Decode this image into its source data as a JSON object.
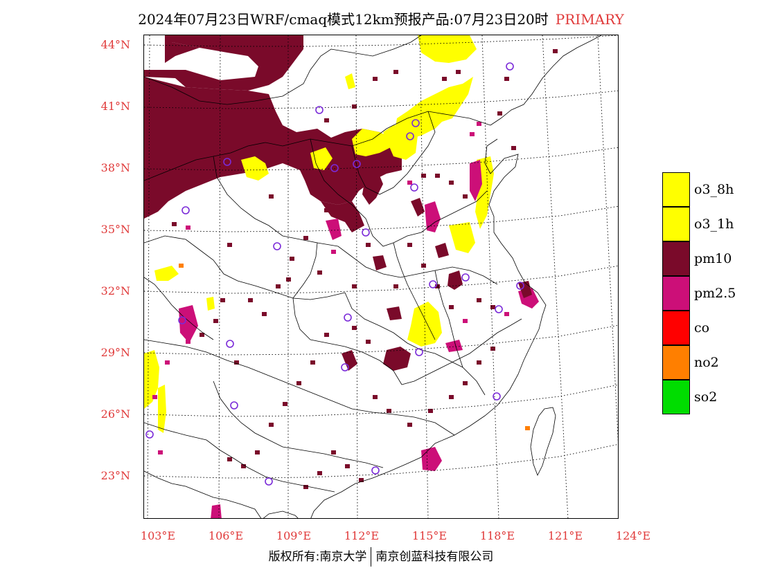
{
  "title": {
    "main": "2024年07月23日WRF/cmaq模式12km预报产品:07月23日20时",
    "tag": "PRIMARY"
  },
  "map": {
    "latitude_labels": [
      "44°N",
      "41°N",
      "38°N",
      "35°N",
      "32°N",
      "29°N",
      "26°N",
      "23°N"
    ],
    "longitude_labels": [
      "103°E",
      "106°E",
      "109°E",
      "112°E",
      "115°E",
      "118°E",
      "121°E",
      "124°E"
    ],
    "extent": {
      "lon": [
        102.9,
        124.0
      ],
      "lat": [
        21.0,
        44.5
      ]
    }
  },
  "legend": {
    "items": [
      {
        "label": "o3_8h",
        "color": "#ffff00"
      },
      {
        "label": "o3_1h",
        "color": "#ffff00"
      },
      {
        "label": "pm10",
        "color": "#7a0a2a"
      },
      {
        "label": "pm2.5",
        "color": "#cc0f78"
      },
      {
        "label": "co",
        "color": "#ff0000"
      },
      {
        "label": "no2",
        "color": "#ff7f00"
      },
      {
        "label": "so2",
        "color": "#00dd00"
      }
    ]
  },
  "footer": {
    "left": "版权所有:南京大学",
    "right": "南京创蓝科技有限公司"
  },
  "colors": {
    "pm10": "#7a0a2a",
    "pm25": "#cc0f78",
    "o3": "#ffff00",
    "no2": "#ff7f00",
    "station": "#7a2ad8",
    "label_red": "#e03a3a"
  }
}
